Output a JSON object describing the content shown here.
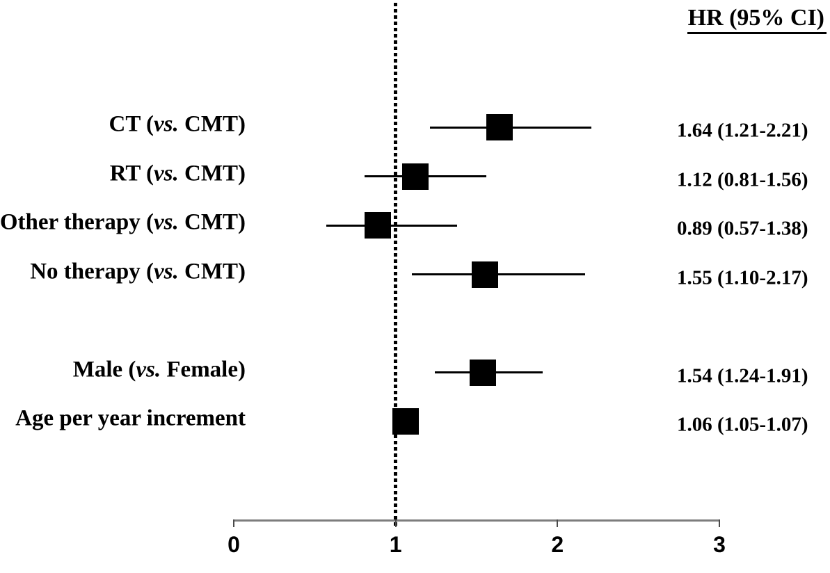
{
  "header": {
    "hr_ci_label": "HR (95% CI)"
  },
  "chart_data": {
    "type": "forest",
    "title": "",
    "value_column_header": "HR (95% CI)",
    "x_axis": {
      "min": 0,
      "max": 3,
      "tick_values": [
        0,
        1,
        2,
        3
      ],
      "tick_labels": [
        "0",
        "1",
        "2",
        "3"
      ],
      "reference_line": 1
    },
    "rows": [
      {
        "label_full": "CT (vs. CMT)",
        "label_prefix": "CT (",
        "label_italic": "vs.",
        "label_suffix": " CMT)",
        "group": "treatment",
        "hr": 1.64,
        "ci_low": 1.21,
        "ci_high": 2.21,
        "hr_ci_text": "1.64 (1.21-2.21)"
      },
      {
        "label_full": "RT (vs. CMT)",
        "label_prefix": "RT (",
        "label_italic": "vs.",
        "label_suffix": " CMT)",
        "group": "treatment",
        "hr": 1.12,
        "ci_low": 0.81,
        "ci_high": 1.56,
        "hr_ci_text": "1.12 (0.81-1.56)"
      },
      {
        "label_full": "Other therapy (vs. CMT)",
        "label_prefix": "Other therapy (",
        "label_italic": "vs.",
        "label_suffix": " CMT)",
        "group": "treatment",
        "hr": 0.89,
        "ci_low": 0.57,
        "ci_high": 1.38,
        "hr_ci_text": "0.89 (0.57-1.38)"
      },
      {
        "label_full": "No therapy (vs. CMT)",
        "label_prefix": "No therapy (",
        "label_italic": "vs.",
        "label_suffix": " CMT)",
        "group": "treatment",
        "hr": 1.55,
        "ci_low": 1.1,
        "ci_high": 2.17,
        "hr_ci_text": "1.55 (1.10-2.17)"
      },
      {
        "label_full": "Male (vs. Female)",
        "label_prefix": "Male (",
        "label_italic": "vs.",
        "label_suffix": " Female)",
        "group": "covariate",
        "hr": 1.54,
        "ci_low": 1.24,
        "ci_high": 1.91,
        "hr_ci_text": "1.54 (1.24-1.91)"
      },
      {
        "label_full": "Age per year increment",
        "label_prefix": "Age per year increment",
        "label_italic": "",
        "label_suffix": "",
        "group": "covariate",
        "hr": 1.06,
        "ci_low": 1.05,
        "ci_high": 1.07,
        "hr_ci_text": "1.06 (1.05-1.07)"
      }
    ],
    "colors": {
      "marker": "#000000",
      "ci_line": "#000000",
      "reference_line": "#000000",
      "axis_line": "#7d7d7d",
      "tick_mark": "#4a4a4a",
      "text": "#000000",
      "background": "#ffffff"
    }
  }
}
